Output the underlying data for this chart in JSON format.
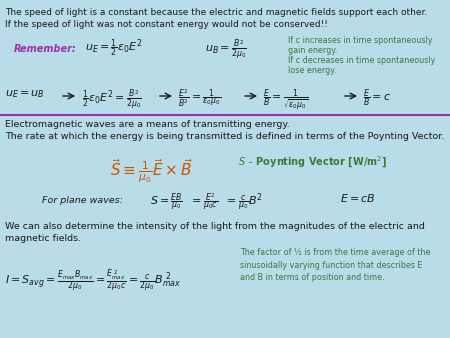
{
  "bg_color": "#b8dce8",
  "purple_color": "#9b30b0",
  "green_color": "#3a7a3a",
  "dark_color": "#1a1a1a",
  "orange_color": "#cc5500",
  "divider_color": "#9b30b0",
  "line1": "The speed of light is a constant because the electric and magnetic fields support each other.",
  "line2": "If the speed of light was not constant energy would not be conserved!!",
  "em_line1": "Electromagnetic waves are a means of transmitting energy.",
  "em_line2": "The rate at which the energy is being transmitted is defined in terms of the Poynting Vector.",
  "intensity_line": "We can also determine the intensity of the light from the magnitudes of the electric and",
  "intensity_line2": "magnetic fields.",
  "factor_note": "The factor of ½ is from the time average of the\nsinusoidally varying function that describes E\nand B in terms of position and time.",
  "green_text1": "If c increases in time spontaneously",
  "green_text2": "gain energy.",
  "green_text3": "If c decreases in time spontaneously",
  "green_text4": "lose energy."
}
